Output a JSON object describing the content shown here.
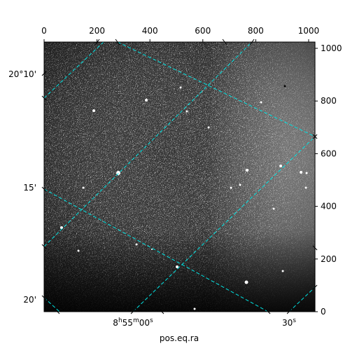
{
  "figure": {
    "x_label": "pos.eq.ra",
    "top_ticks": [
      "0",
      "200",
      "400",
      "600",
      "800",
      "1000"
    ],
    "top_tick_values": [
      0,
      200,
      400,
      600,
      800,
      1000
    ],
    "right_ticks": [
      "0",
      "200",
      "400",
      "600",
      "800",
      "1000"
    ],
    "right_tick_values": [
      0,
      200,
      400,
      600,
      800,
      1000
    ],
    "pixel_range": [
      0,
      1024
    ],
    "ra_ticks": [
      {
        "label_main": "8",
        "sup1": "h",
        "mid": "55",
        "sup2": "m",
        "end": "00",
        "sup3": "s"
      },
      {
        "label_main": "30",
        "sup1": "s",
        "mid": "",
        "sup2": "",
        "end": "",
        "sup3": ""
      }
    ],
    "dec_ticks": [
      {
        "label": "20°10'"
      },
      {
        "label": "15'"
      },
      {
        "label": "20'"
      }
    ],
    "colors": {
      "grid": "#00e5e5",
      "image_dark": "#000000",
      "image_light": "#ffffff"
    }
  }
}
